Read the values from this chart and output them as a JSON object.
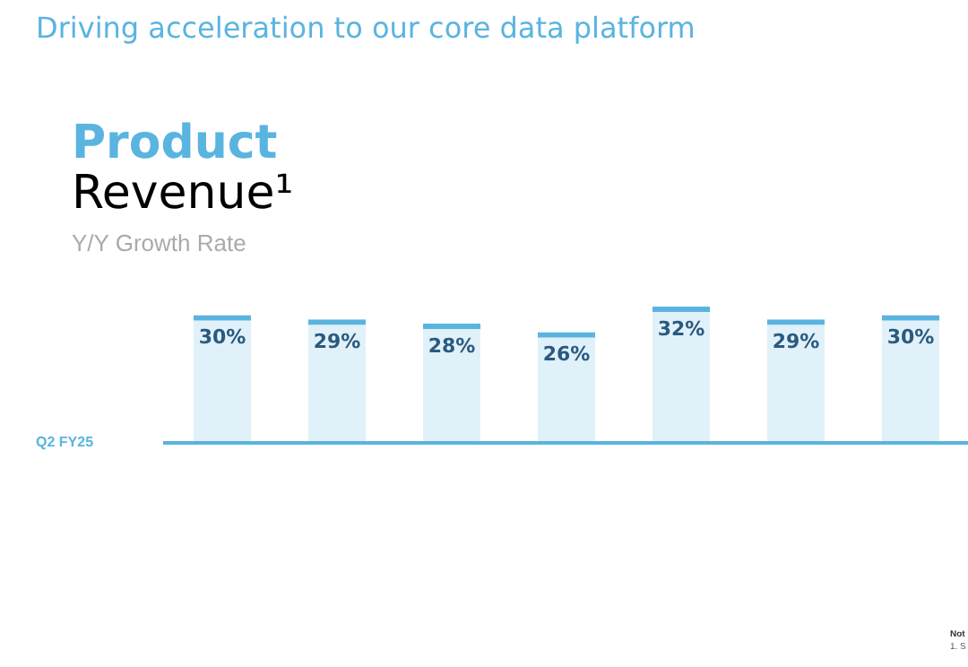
{
  "chart_data": {
    "type": "bar",
    "title": "Driving acceleration to our core data platform",
    "subtitle": "Product Revenue¹",
    "categories": [
      null,
      null,
      null,
      null,
      null,
      null,
      null
    ],
    "values": [
      30,
      29,
      28,
      26,
      32,
      29,
      30
    ],
    "color": "#5ab4e0",
    "value_labels": [
      "30%",
      "29%",
      "28%",
      "26%",
      "32%",
      "29%",
      "30%"
    ],
    "grid": false,
    "legend": false,
    "annotations": [
      "Y/Y Growth Rate",
      "Q2 FY25",
      "Not",
      "1. S"
    ]
  }
}
